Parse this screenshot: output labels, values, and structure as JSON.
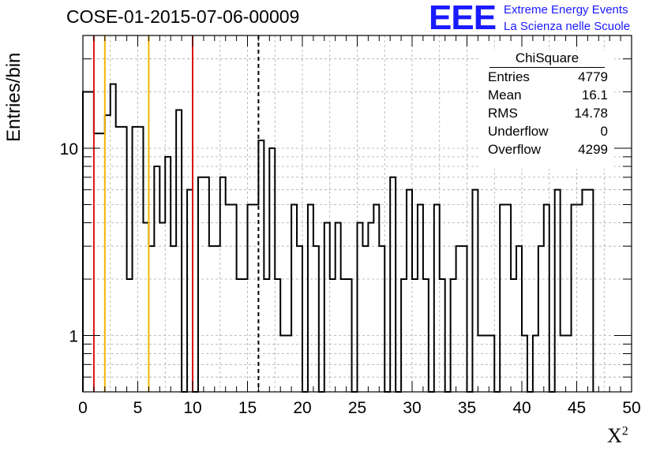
{
  "chart_data": {
    "type": "bar",
    "title": "COSE-01-2015-07-06-00009",
    "xlabel": "X",
    "xlabel_sup": "2",
    "ylabel": "Entries/bin",
    "xlim": [
      0,
      50
    ],
    "ylim": [
      0.5,
      40
    ],
    "y_scale": "log",
    "grid": true,
    "bin_width": 0.5,
    "x_ticks": [
      "0",
      "5",
      "10",
      "15",
      "20",
      "25",
      "30",
      "35",
      "40",
      "45",
      "50"
    ],
    "y_ticks": [
      {
        "value": 1,
        "label": "1"
      },
      {
        "value": 10,
        "label": "10"
      }
    ],
    "values": [
      20,
      20,
      12,
      12,
      15,
      22,
      13,
      13,
      2,
      13,
      13,
      4,
      3,
      8,
      4,
      9,
      3,
      16,
      0,
      6,
      0,
      7,
      7,
      3,
      3,
      7,
      5,
      5,
      2,
      2,
      5,
      5,
      11,
      2,
      10,
      2,
      1,
      1,
      5,
      3,
      0,
      5,
      3,
      0,
      4,
      2,
      4,
      2,
      2,
      0,
      4,
      3,
      4,
      5,
      3,
      0,
      7,
      0,
      2,
      6,
      2,
      5,
      2,
      0,
      5,
      2,
      0,
      2,
      3,
      3,
      0,
      6,
      1,
      1,
      1,
      0,
      5,
      5,
      2,
      3,
      1,
      0,
      1,
      3,
      5,
      0,
      6,
      1,
      1,
      5,
      5,
      6,
      6
    ],
    "vertical_lines": [
      {
        "x": 1,
        "color": "#dd1111",
        "style": "solid"
      },
      {
        "x": 2,
        "color": "#f4b400",
        "style": "solid"
      },
      {
        "x": 6,
        "color": "#f4b400",
        "style": "solid"
      },
      {
        "x": 10,
        "color": "#dd1111",
        "style": "solid"
      },
      {
        "x": 16,
        "color": "#000000",
        "style": "dashed"
      }
    ]
  },
  "stats_box": {
    "title": "ChiSquare",
    "rows": [
      {
        "label": "Entries",
        "value": "4779"
      },
      {
        "label": "Mean",
        "value": "16.1"
      },
      {
        "label": "RMS",
        "value": "14.78"
      },
      {
        "label": "Underflow",
        "value": "0"
      },
      {
        "label": "Overflow",
        "value": "4299"
      }
    ]
  },
  "logo": {
    "mark": "EEE",
    "line1": "Extreme Energy Events",
    "line2": "La Scienza nelle Scuole",
    "color": "#1a1aff"
  }
}
